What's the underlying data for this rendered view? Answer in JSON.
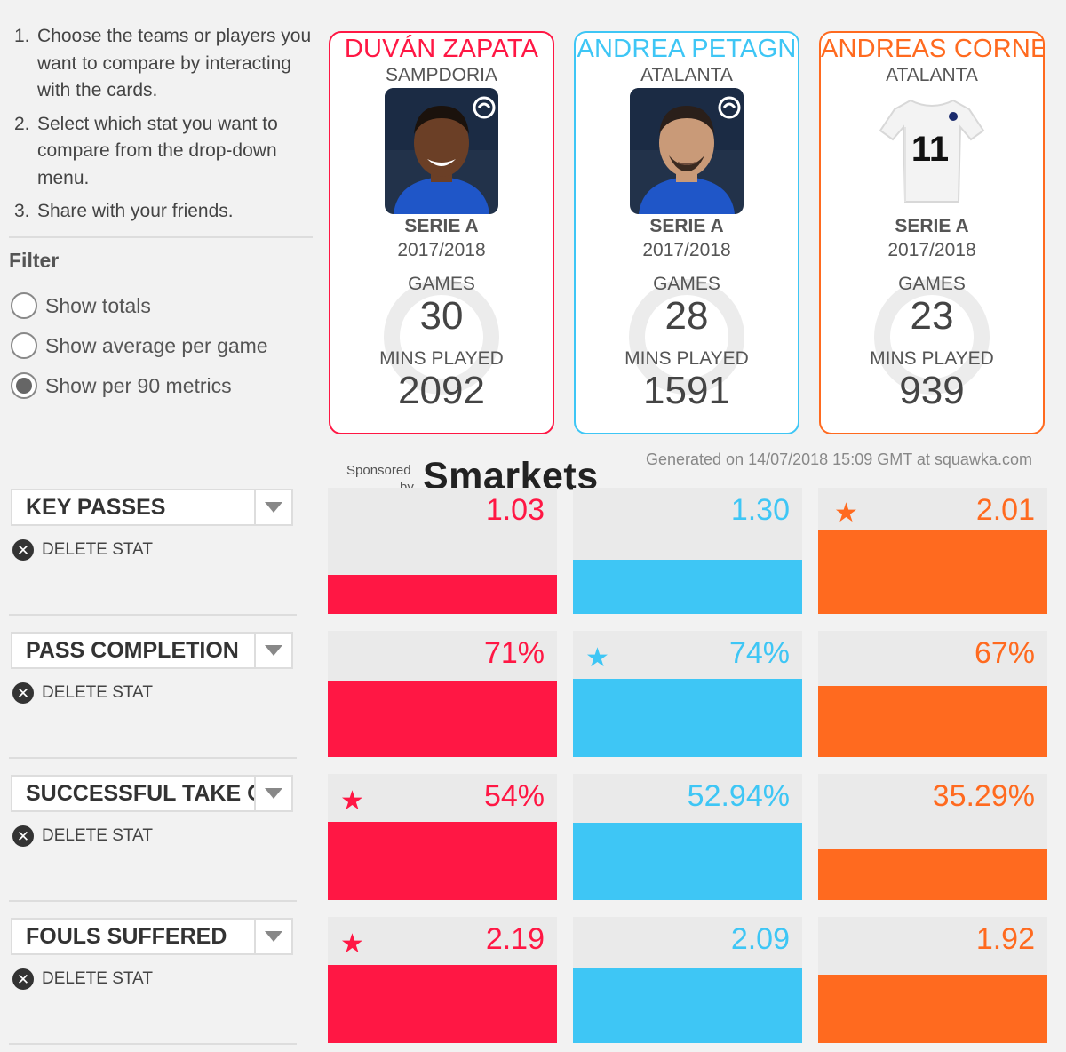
{
  "instructions": [
    {
      "num": "1.",
      "text": "Choose the teams or players you want to compare by interacting with the cards."
    },
    {
      "num": "2.",
      "text": "Select which stat you want to compare from the drop-down menu."
    },
    {
      "num": "3.",
      "text": "Share with your friends."
    }
  ],
  "filter": {
    "title": "Filter",
    "options": [
      "Show totals",
      "Show average per game",
      "Show per 90 metrics"
    ],
    "selected": 2
  },
  "players": [
    {
      "name": "DUVÁN ZAPATA",
      "team": "SAMPDORIA",
      "league": "SERIE A",
      "season": "2017/2018",
      "games_label": "GAMES",
      "games": "30",
      "mins_label": "MINS PLAYED",
      "mins": "2092",
      "color": "#ff1744",
      "photo": "player-photo"
    },
    {
      "name": "ANDREA PETAGN",
      "team": "ATALANTA",
      "league": "SERIE A",
      "season": "2017/2018",
      "games_label": "GAMES",
      "games": "28",
      "mins_label": "MINS PLAYED",
      "mins": "1591",
      "color": "#3ec6f5",
      "photo": "player-photo"
    },
    {
      "name": "ANDREAS CORNE",
      "team": "ATALANTA",
      "league": "SERIE A",
      "season": "2017/2018",
      "games_label": "GAMES",
      "games": "23",
      "mins_label": "MINS PLAYED",
      "mins": "939",
      "color": "#ff6a1f",
      "photo": "shirt-11",
      "shirt_number": "11"
    }
  ],
  "sponsor": {
    "line1": "Sponsored",
    "line2": "by",
    "brand": "Smarkets"
  },
  "generated": "Generated on 14/07/2018 15:09 GMT at squawka.com",
  "delete_label": "DELETE STAT",
  "stats": [
    {
      "name": "KEY PASSES",
      "values": [
        "1.03",
        "1.30",
        "2.01"
      ],
      "fill": [
        0.31,
        0.43,
        0.66
      ],
      "star": 2
    },
    {
      "name": "PASS COMPLETION",
      "values": [
        "71%",
        "74%",
        "67%"
      ],
      "fill": [
        0.6,
        0.62,
        0.56
      ],
      "star": 1
    },
    {
      "name": "SUCCESSFUL TAKE ONS",
      "values": [
        "54%",
        "52.94%",
        "35.29%"
      ],
      "fill": [
        0.62,
        0.61,
        0.4
      ],
      "star": 0
    },
    {
      "name": "FOULS SUFFERED",
      "values": [
        "2.19",
        "2.09",
        "1.92"
      ],
      "fill": [
        0.62,
        0.59,
        0.54
      ],
      "star": 0
    }
  ]
}
